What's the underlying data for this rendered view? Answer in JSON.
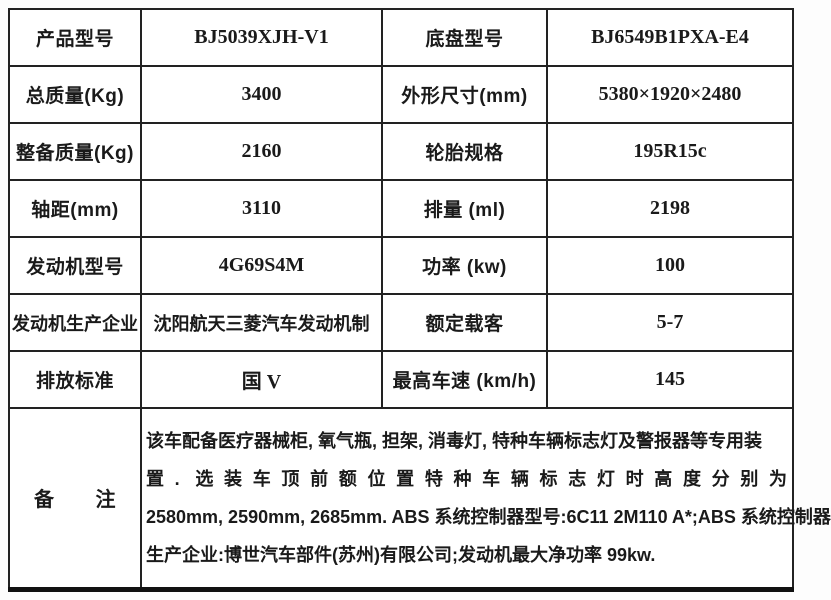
{
  "table": {
    "rows": [
      {
        "c0": "产品型号",
        "c1": "BJ5039XJH-V1",
        "c2": "底盘型号",
        "c3": "BJ6549B1PXA-E4"
      },
      {
        "c0": "总质量(Kg)",
        "c1": "3400",
        "c2": "外形尺寸(mm)",
        "c3": "5380×1920×2480"
      },
      {
        "c0": "整备质量(Kg)",
        "c1": "2160",
        "c2": "轮胎规格",
        "c3": "195R15c"
      },
      {
        "c0": "轴距(mm)",
        "c1": "3110",
        "c2": "排量 (ml)",
        "c3": "2198"
      },
      {
        "c0": "发动机型号",
        "c1": "4G69S4M",
        "c2": "功率 (kw)",
        "c3": "100"
      },
      {
        "c0": "发动机生产企业",
        "c1": "沈阳航天三菱汽车发动机制",
        "c2": "额定载客",
        "c3": "5-7"
      },
      {
        "c0": "排放标准",
        "c1": "国 V",
        "c2": "最高车速 (km/h)",
        "c3": "145"
      }
    ],
    "note": {
      "label": "备　　注",
      "lines": [
        "该车配备医疗器械柜, 氧气瓶, 担架, 消毒灯, 特种车辆标志灯及警报器等专用装",
        "置. 选装车顶前额位置特种车辆标志灯时高度分别为",
        "2580mm, 2590mm, 2685mm. ABS 系统控制器型号:6C11 2M110 A*;ABS 系统控制器",
        "生产企业:博世汽车部件(苏州)有限公司;发动机最大净功率 99kw."
      ]
    }
  }
}
